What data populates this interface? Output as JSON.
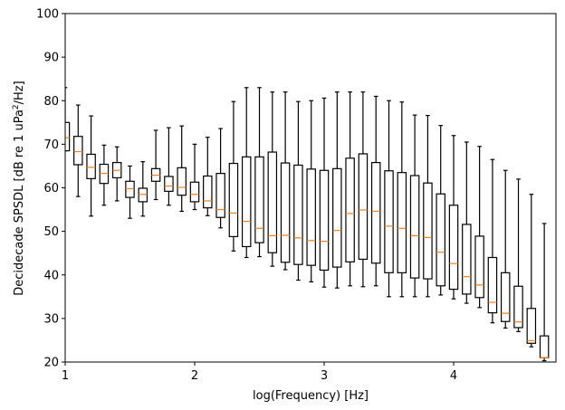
{
  "chart_data": {
    "type": "boxplot",
    "title": "",
    "xlabel": "log(Frequency) [Hz]",
    "ylabel": "Decidecade SPSDL [dB re 1 uPa",
    "ylabel_sup": "2",
    "ylabel_tail": "/Hz]",
    "xlim": [
      1.0,
      4.79
    ],
    "ylim": [
      20,
      100
    ],
    "xticks": [
      1,
      2,
      3,
      4
    ],
    "yticks": [
      20,
      30,
      40,
      50,
      60,
      70,
      80,
      90,
      100
    ],
    "grid": false,
    "legend": null,
    "box_color": "#000000",
    "median_color": "#ff7f0e",
    "box_width": 0.065,
    "boxes_fields": [
      "x",
      "whisker_low",
      "q1",
      "median",
      "q3",
      "whisker_high"
    ],
    "boxes": [
      [
        1.0,
        68.5,
        68.5,
        71.5,
        75.0,
        83.0
      ],
      [
        1.1,
        58.0,
        65.3,
        68.3,
        71.8,
        79.0
      ],
      [
        1.2,
        53.5,
        62.1,
        64.7,
        67.7,
        76.5
      ],
      [
        1.3,
        56.0,
        61.0,
        63.3,
        65.4,
        69.8
      ],
      [
        1.4,
        57.0,
        62.3,
        64.0,
        65.8,
        69.4
      ],
      [
        1.5,
        53.0,
        57.8,
        59.8,
        61.5,
        65.0
      ],
      [
        1.6,
        53.5,
        56.8,
        58.5,
        59.9,
        66.0
      ],
      [
        1.7,
        57.3,
        61.5,
        62.9,
        64.4,
        73.2
      ],
      [
        1.8,
        56.0,
        59.2,
        60.4,
        62.6,
        73.8
      ],
      [
        1.9,
        54.6,
        58.3,
        60.1,
        64.6,
        74.2
      ],
      [
        2.0,
        55.0,
        56.8,
        58.5,
        61.3,
        70.0
      ],
      [
        2.1,
        53.6,
        55.4,
        57.0,
        62.7,
        71.6
      ],
      [
        2.2,
        50.8,
        53.2,
        55.0,
        63.3,
        73.6
      ],
      [
        2.3,
        45.5,
        48.8,
        54.2,
        65.6,
        79.8
      ],
      [
        2.4,
        44.0,
        46.5,
        52.3,
        67.1,
        83.0
      ],
      [
        2.5,
        44.2,
        47.4,
        50.7,
        67.1,
        83.0
      ],
      [
        2.6,
        42.0,
        45.1,
        49.0,
        68.2,
        82.0
      ],
      [
        2.7,
        41.2,
        42.9,
        49.1,
        65.7,
        82.0
      ],
      [
        2.8,
        38.8,
        42.4,
        48.5,
        65.2,
        79.8
      ],
      [
        2.9,
        38.4,
        42.2,
        47.9,
        64.3,
        80.0
      ],
      [
        3.0,
        37.2,
        41.1,
        47.7,
        64.0,
        80.6
      ],
      [
        3.1,
        37.0,
        41.8,
        50.2,
        64.4,
        82.0
      ],
      [
        3.2,
        37.5,
        43.0,
        54.1,
        66.8,
        82.0
      ],
      [
        3.3,
        37.3,
        43.6,
        54.9,
        67.8,
        82.0
      ],
      [
        3.4,
        37.5,
        42.7,
        54.6,
        65.8,
        81.0
      ],
      [
        3.5,
        35.0,
        40.5,
        51.2,
        63.9,
        80.0
      ],
      [
        3.6,
        35.0,
        40.5,
        50.7,
        63.5,
        79.7
      ],
      [
        3.7,
        35.0,
        39.3,
        49.0,
        62.8,
        76.7
      ],
      [
        3.8,
        35.0,
        39.1,
        48.6,
        61.1,
        76.6
      ],
      [
        3.9,
        35.4,
        37.5,
        45.2,
        58.6,
        74.3
      ],
      [
        4.0,
        34.5,
        36.7,
        42.6,
        56.0,
        72.0
      ],
      [
        4.1,
        33.5,
        35.6,
        39.6,
        51.6,
        70.5
      ],
      [
        4.2,
        32.5,
        34.8,
        37.7,
        48.9,
        69.5
      ],
      [
        4.3,
        29.0,
        31.3,
        33.7,
        44.0,
        66.5
      ],
      [
        4.4,
        27.8,
        29.3,
        31.2,
        40.5,
        64.0
      ],
      [
        4.5,
        27.0,
        27.9,
        29.2,
        37.4,
        62.0
      ],
      [
        4.6,
        23.5,
        24.3,
        24.9,
        32.3,
        58.5
      ],
      [
        4.7,
        20.3,
        21.0,
        21.0,
        26.0,
        51.8
      ]
    ]
  }
}
